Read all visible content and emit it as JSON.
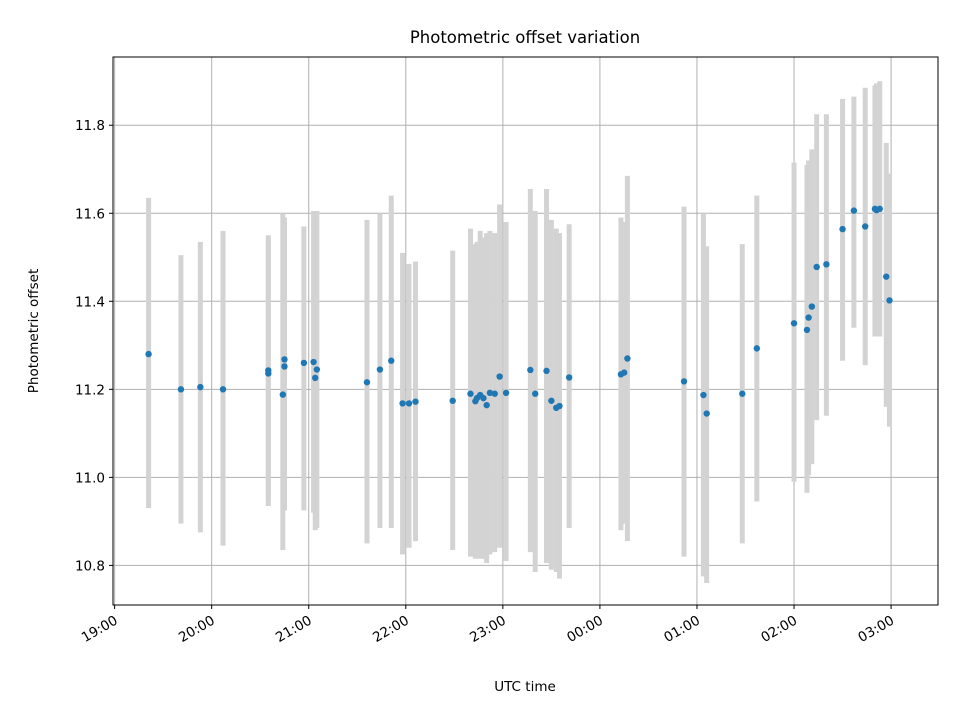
{
  "chart_data": {
    "type": "scatter",
    "title": "Photometric offset variation",
    "xlabel": "UTC time",
    "ylabel": "Photometric offset",
    "grid": true,
    "x_axis": {
      "kind": "time",
      "range": [
        "18:59",
        "03:29"
      ],
      "ticks": [
        "19:00",
        "20:00",
        "21:00",
        "22:00",
        "23:00",
        "00:00",
        "01:00",
        "02:00",
        "03:00"
      ]
    },
    "y_axis": {
      "range": [
        10.71,
        11.955
      ],
      "ticks": [
        10.8,
        11.0,
        11.2,
        11.4,
        11.6,
        11.8
      ],
      "tick_labels": [
        "10.8",
        "11.0",
        "11.2",
        "11.4",
        "11.6",
        "11.8"
      ]
    },
    "colors": {
      "points": "#1f77b4",
      "error_bars": "#d3d3d3",
      "grid": "#b0b0b0"
    },
    "series": [
      {
        "x": [
          "19:21",
          "19:41",
          "19:53",
          "20:07",
          "20:35",
          "20:35",
          "20:44",
          "20:45",
          "20:45",
          "20:57",
          "21:03",
          "21:04",
          "21:05",
          "21:36",
          "21:44",
          "21:51",
          "21:58",
          "22:02",
          "22:06",
          "22:29",
          "22:40",
          "22:43",
          "22:44",
          "22:46",
          "22:48",
          "22:50",
          "22:52",
          "22:55",
          "22:58",
          "23:02",
          "23:17",
          "23:20",
          "23:27",
          "23:30",
          "23:33",
          "23:35",
          "23:41",
          "00:13",
          "00:15",
          "00:17",
          "00:52",
          "01:04",
          "01:06",
          "01:28",
          "01:37",
          "02:00",
          "02:08",
          "02:09",
          "02:11",
          "02:14",
          "02:20",
          "02:30",
          "02:37",
          "02:44",
          "02:50",
          "02:51",
          "02:53",
          "02:57",
          "02:59"
        ],
        "y": [
          11.28,
          11.2,
          11.205,
          11.2,
          11.236,
          11.243,
          11.188,
          11.268,
          11.252,
          11.26,
          11.262,
          11.226,
          11.245,
          11.216,
          11.245,
          11.265,
          11.168,
          11.168,
          11.172,
          11.174,
          11.19,
          11.173,
          11.18,
          11.187,
          11.18,
          11.164,
          11.192,
          11.19,
          11.229,
          11.192,
          11.244,
          11.19,
          11.242,
          11.174,
          11.158,
          11.162,
          11.227,
          11.234,
          11.238,
          11.27,
          11.218,
          11.187,
          11.145,
          11.19,
          11.293,
          11.35,
          11.335,
          11.363,
          11.388,
          11.478,
          11.484,
          11.564,
          11.606,
          11.57,
          11.61,
          11.607,
          11.61,
          11.456,
          11.402
        ],
        "y_low": [
          10.93,
          10.895,
          10.875,
          10.845,
          10.935,
          10.955,
          10.835,
          10.925,
          10.925,
          10.925,
          10.92,
          10.88,
          10.885,
          10.85,
          10.885,
          10.885,
          10.825,
          10.84,
          10.855,
          10.835,
          10.82,
          10.815,
          10.825,
          10.815,
          10.815,
          10.805,
          10.825,
          10.83,
          10.84,
          10.81,
          10.83,
          10.785,
          10.805,
          10.79,
          10.785,
          10.77,
          10.885,
          10.88,
          10.895,
          10.855,
          10.82,
          10.775,
          10.76,
          10.85,
          10.945,
          10.99,
          10.965,
          11.005,
          11.03,
          11.13,
          11.14,
          11.265,
          11.34,
          11.255,
          11.32,
          11.33,
          11.32,
          11.16,
          11.115
        ],
        "y_high": [
          11.635,
          11.505,
          11.535,
          11.56,
          11.55,
          11.54,
          11.6,
          11.58,
          11.59,
          11.57,
          11.605,
          11.57,
          11.605,
          11.585,
          11.6,
          11.64,
          11.51,
          11.485,
          11.49,
          11.515,
          11.565,
          11.53,
          11.535,
          11.56,
          11.545,
          11.555,
          11.56,
          11.555,
          11.62,
          11.58,
          11.655,
          11.605,
          11.655,
          11.585,
          11.565,
          11.555,
          11.575,
          11.59,
          11.58,
          11.685,
          11.615,
          11.6,
          11.525,
          11.53,
          11.64,
          11.715,
          11.71,
          11.72,
          11.745,
          11.825,
          11.825,
          11.86,
          11.865,
          11.885,
          11.89,
          11.895,
          11.9,
          11.76,
          11.69
        ]
      }
    ]
  }
}
